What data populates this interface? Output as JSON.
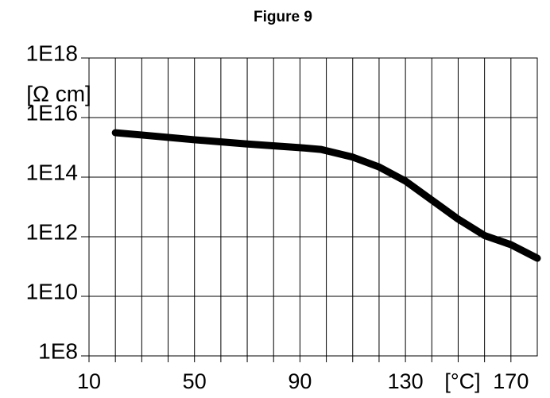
{
  "chart_data": {
    "type": "line",
    "title": "Figure 9",
    "y_label": "[Ω cm]",
    "x_label": "[°C]",
    "x": [
      20,
      30,
      50,
      70,
      90,
      98,
      110,
      120,
      130,
      140,
      150,
      160,
      170,
      180
    ],
    "series": [
      {
        "name": "resistivity",
        "color": "#000000",
        "values": [
          3100000000000000.0,
          2600000000000000.0,
          1800000000000000.0,
          1300000000000000.0,
          980000000000000.0,
          850000000000000.0,
          470000000000000.0,
          220000000000000.0,
          74000000000000.0,
          17000000000000.0,
          3900000000000.0,
          1100000000000.0,
          540000000000.0,
          190000000000.0
        ]
      }
    ],
    "xlim": [
      10,
      180
    ],
    "xticks": [
      10,
      50,
      90,
      130,
      170
    ],
    "x_minor_ticks": [
      20,
      30,
      40,
      60,
      70,
      80,
      100,
      110,
      120,
      140,
      150,
      160
    ],
    "ylim": [
      100000000.0,
      1e+18
    ],
    "log_y": true,
    "yticks": [
      {
        "value": 100000000.0,
        "label": "1E8"
      },
      {
        "value": 10000000000.0,
        "label": "1E10"
      },
      {
        "value": 1000000000000.0,
        "label": "1E12"
      },
      {
        "value": 100000000000000.0,
        "label": "1E14"
      },
      {
        "value": 1e+16,
        "label": "1E16"
      },
      {
        "value": 1e+18,
        "label": "1E18"
      }
    ],
    "grid": true
  }
}
